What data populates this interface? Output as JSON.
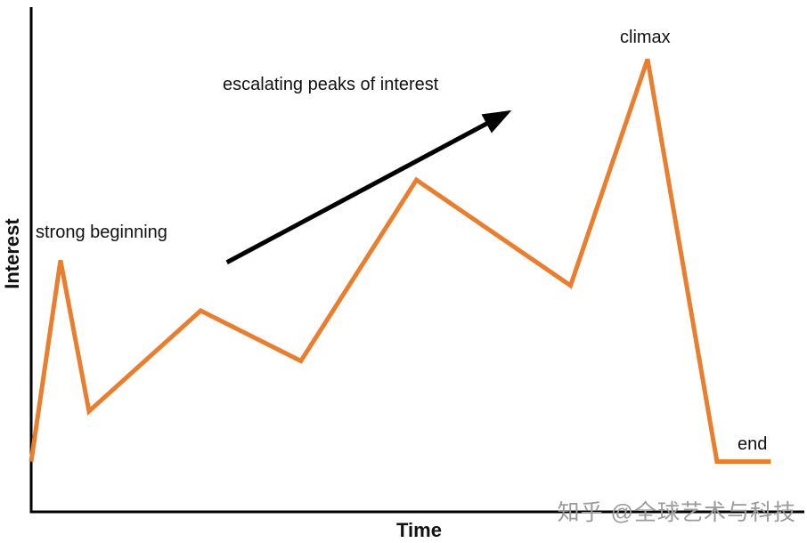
{
  "chart_data": {
    "type": "line",
    "title": "",
    "xlabel": "Time",
    "ylabel": "Interest",
    "x_range": [
      0,
      100
    ],
    "y_range": [
      0,
      100
    ],
    "grid": false,
    "legend": false,
    "line_color": "#E87E2E",
    "axis_color": "#000000",
    "series": [
      {
        "name": "interest",
        "points": [
          {
            "x": 0,
            "y": 10
          },
          {
            "x": 3.8,
            "y": 50
          },
          {
            "x": 7.5,
            "y": 20
          },
          {
            "x": 22,
            "y": 40
          },
          {
            "x": 35,
            "y": 30
          },
          {
            "x": 50,
            "y": 66
          },
          {
            "x": 70,
            "y": 45
          },
          {
            "x": 80,
            "y": 90
          },
          {
            "x": 89,
            "y": 10
          },
          {
            "x": 96,
            "y": 10
          }
        ]
      }
    ],
    "annotations": [
      {
        "id": "strong_beginning",
        "text": "strong beginning"
      },
      {
        "id": "escalating_peaks",
        "text": "escalating peaks of interest"
      },
      {
        "id": "climax",
        "text": "climax"
      },
      {
        "id": "end",
        "text": "end"
      }
    ],
    "arrow": {
      "x1": 25.4,
      "y1": 49.6,
      "x2": 59.5,
      "y2": 77.5,
      "color": "#000000"
    }
  },
  "watermark": {
    "text": "知乎 @全球艺术与科技",
    "color": "#9b9b9b"
  }
}
